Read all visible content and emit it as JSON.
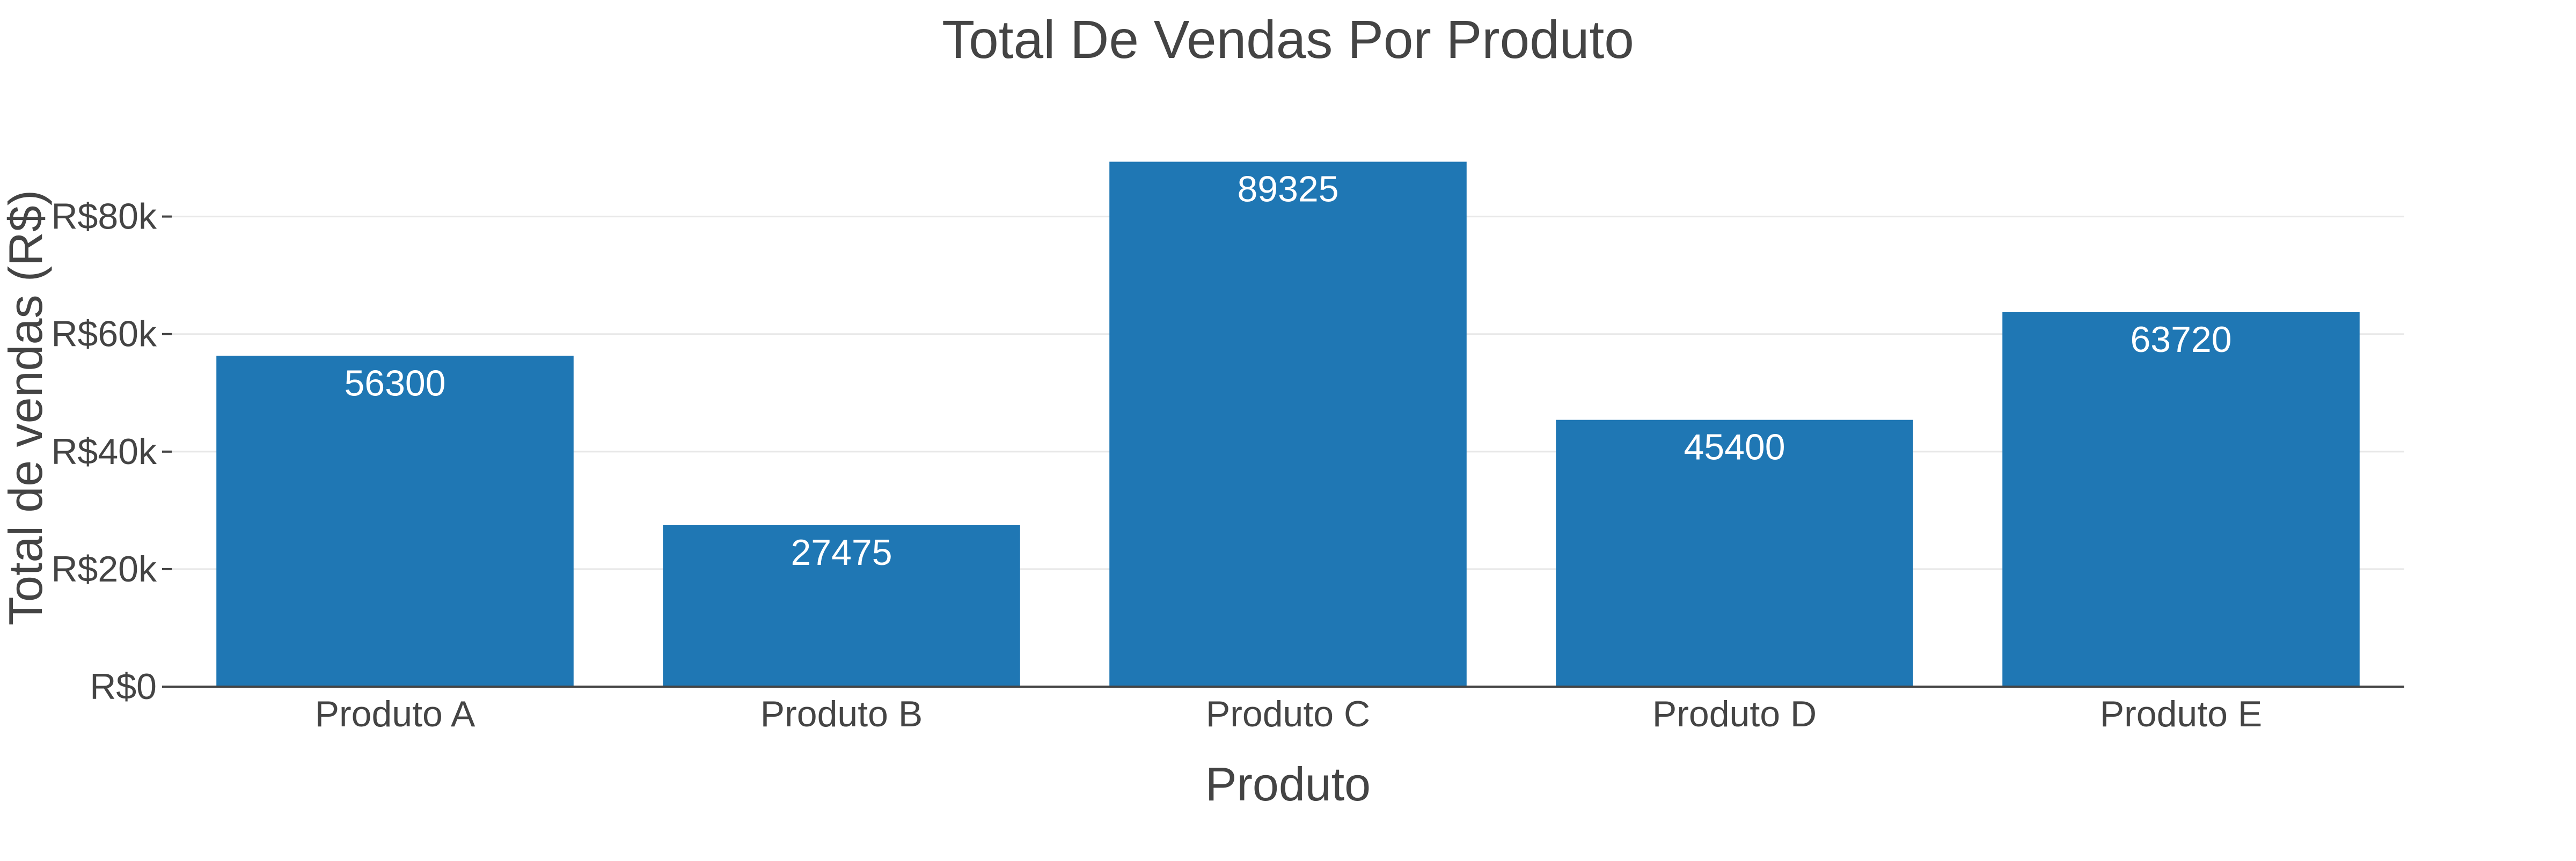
{
  "chart_data": {
    "type": "bar",
    "title": "Total De Vendas Por Produto",
    "xlabel": "Produto",
    "ylabel": "Total de vendas (R$)",
    "categories": [
      "Produto A",
      "Produto B",
      "Produto C",
      "Produto D",
      "Produto E"
    ],
    "values": [
      56300,
      27475,
      89325,
      45400,
      63720
    ],
    "data_labels": [
      "56300",
      "27475",
      "89325",
      "45400",
      "63720"
    ],
    "yticks": [
      {
        "value": 0,
        "label": "R$0"
      },
      {
        "value": 20000,
        "label": "R$20k"
      },
      {
        "value": 40000,
        "label": "R$40k"
      },
      {
        "value": 60000,
        "label": "R$60k"
      },
      {
        "value": 80000,
        "label": "R$80k"
      }
    ],
    "ylim": [
      0,
      94026
    ],
    "grid": true,
    "legend": "none",
    "colors": {
      "bar": "#1f77b4",
      "text": "#444444",
      "grid": "#e8e8e8",
      "axis": "#444444",
      "data_label": "#ffffff"
    }
  }
}
